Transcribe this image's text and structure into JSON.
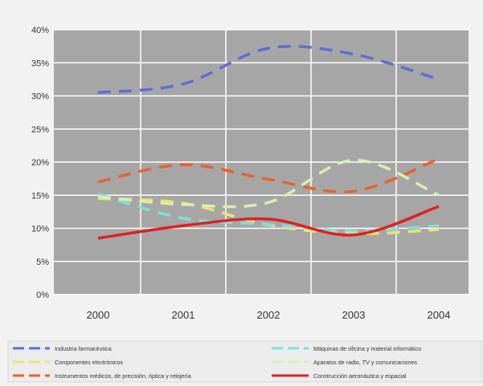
{
  "chart_data": {
    "type": "line",
    "title": "",
    "xlabel": "",
    "ylabel": "",
    "categories": [
      "2000",
      "2001",
      "2002",
      "2003",
      "2004"
    ],
    "ylim": [
      0,
      40
    ],
    "yticks": [
      "0%",
      "5%",
      "10%",
      "15%",
      "20%",
      "25%",
      "30%",
      "35%",
      "40%"
    ],
    "grid": true,
    "legend_position": "bottom",
    "colors": {
      "plot_background": "#a6a6a6",
      "page_background": "#f2f2f2",
      "gridline": "#ffffff"
    },
    "series": [
      {
        "name": "Industria farmacéutica",
        "values": [
          30.5,
          31.8,
          37.2,
          36.3,
          32.5
        ],
        "color": "#5b6fd4",
        "style": "dashed"
      },
      {
        "name": "Componentes electrónicos",
        "values": [
          14.5,
          13.8,
          10.5,
          9.2,
          9.8
        ],
        "color": "#f0e070",
        "style": "dashed"
      },
      {
        "name": "Instrumentos médicos, de precisión, óptica y relojería",
        "values": [
          17.0,
          19.6,
          17.4,
          15.6,
          20.5
        ],
        "color": "#e8622a",
        "style": "dashed"
      },
      {
        "name": "Máquinas de oficina y material informático",
        "values": [
          15.2,
          11.5,
          10.6,
          9.6,
          10.4
        ],
        "color": "#7fdede",
        "style": "dashed"
      },
      {
        "name": "Aparatos de radio, TV y comunicaciones",
        "values": [
          14.8,
          13.6,
          13.9,
          20.3,
          15.0
        ],
        "color": "#d8f0b0",
        "style": "dashed"
      },
      {
        "name": "Construcción aeronáutica y espacial",
        "values": [
          8.5,
          10.4,
          11.4,
          9.0,
          13.3
        ],
        "color": "#e02020",
        "style": "solid"
      }
    ]
  }
}
